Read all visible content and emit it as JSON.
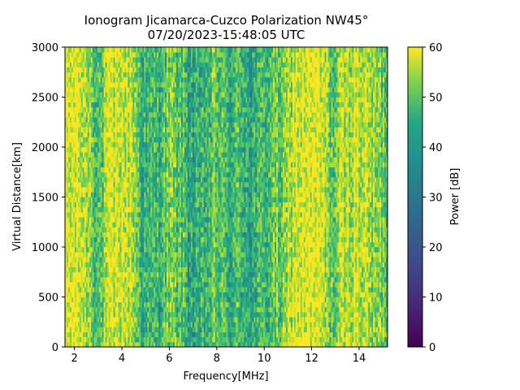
{
  "chart_data": {
    "type": "heatmap",
    "title": "Ionogram Jicamarca-Cuzco Polarization NW45°",
    "subtitle": "07/20/2023-15:48:05 UTC",
    "xlabel": "Frequency[MHz]",
    "ylabel": "Virtual Distance[km]",
    "xlim": [
      1.6,
      15.2
    ],
    "ylim": [
      0,
      3000
    ],
    "xticks": [
      2,
      4,
      6,
      8,
      10,
      12,
      14
    ],
    "yticks": [
      0,
      500,
      1000,
      1500,
      2000,
      2500,
      3000
    ],
    "colorbar": {
      "label": "Power [dB]",
      "range": [
        0,
        60
      ],
      "ticks": [
        0,
        10,
        20,
        30,
        40,
        50,
        60
      ],
      "colormap": "viridis"
    },
    "frequency_profile_mhz_db": [
      [
        1.6,
        58
      ],
      [
        2.2,
        56
      ],
      [
        2.6,
        52
      ],
      [
        2.9,
        44
      ],
      [
        3.1,
        42
      ],
      [
        3.4,
        54
      ],
      [
        4.0,
        56
      ],
      [
        4.4,
        55
      ],
      [
        4.7,
        44
      ],
      [
        5.0,
        38
      ],
      [
        5.5,
        40
      ],
      [
        6.0,
        46
      ],
      [
        6.5,
        42
      ],
      [
        6.8,
        38
      ],
      [
        7.2,
        34
      ],
      [
        7.6,
        40
      ],
      [
        8.0,
        45
      ],
      [
        8.5,
        38
      ],
      [
        9.0,
        42
      ],
      [
        9.5,
        36
      ],
      [
        10.0,
        40
      ],
      [
        10.4,
        46
      ],
      [
        10.8,
        44
      ],
      [
        11.2,
        56
      ],
      [
        11.8,
        58
      ],
      [
        12.4,
        56
      ],
      [
        12.9,
        44
      ],
      [
        13.3,
        52
      ],
      [
        13.8,
        56
      ],
      [
        14.3,
        53
      ],
      [
        14.7,
        48
      ],
      [
        15.2,
        44
      ]
    ]
  }
}
